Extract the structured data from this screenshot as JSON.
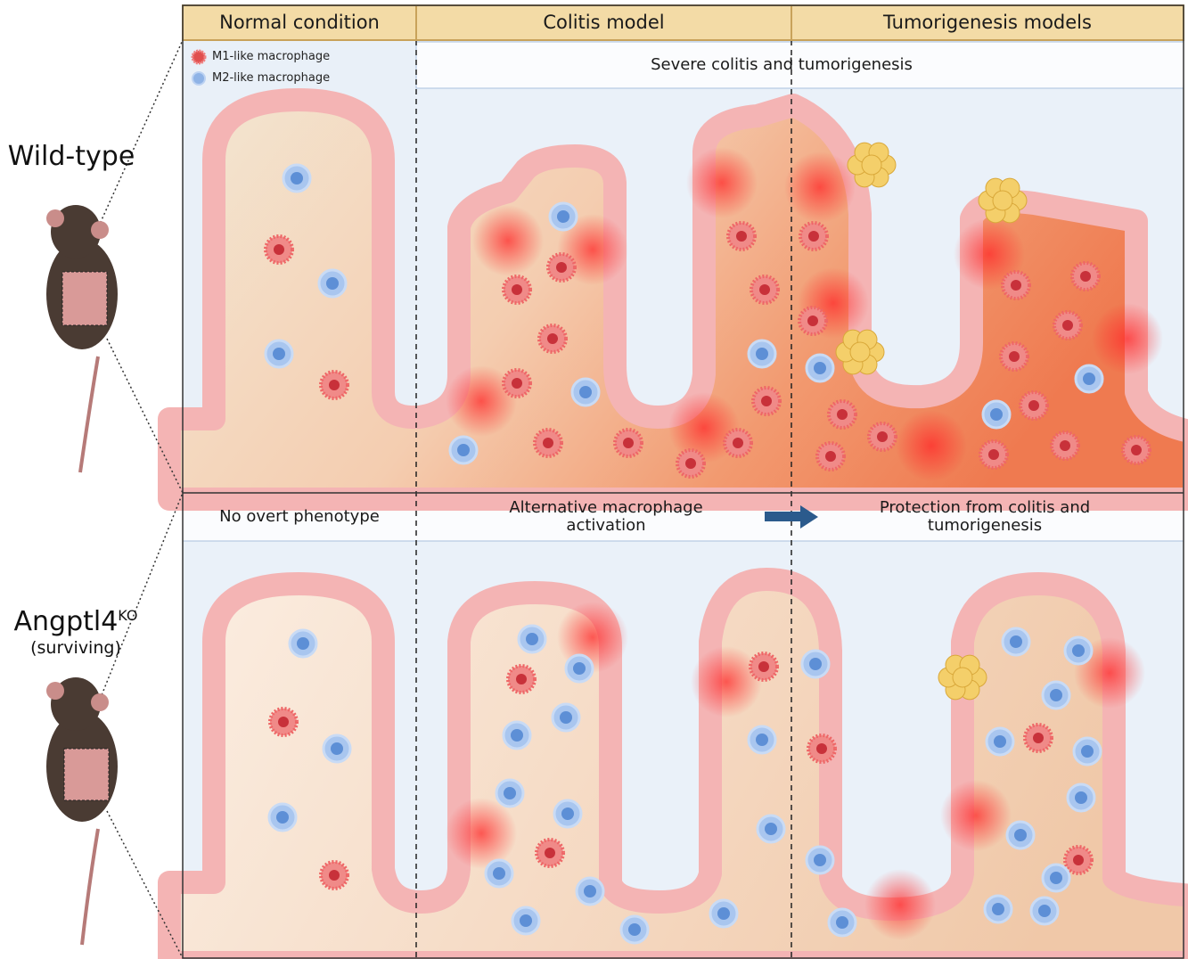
{
  "columns": [
    "Normal condition",
    "Colitis model",
    "Tumorigenesis models"
  ],
  "legend": {
    "m1": "M1-like macrophage",
    "m2": "M2-like macrophage"
  },
  "wildtype": {
    "label": "Wild-type",
    "banner": "Severe colitis and tumorigenesis"
  },
  "knockout": {
    "label": "Angptl4",
    "superscript": "KO",
    "sublabel": "(surviving)",
    "normal": "No overt phenotype",
    "colitis": "Alternative macrophage activation",
    "tumor": "Protection from colitis and tumorigenesis"
  },
  "colors": {
    "header": "#f3dba6",
    "header_border": "#c8a25a",
    "m1": "#e0504f",
    "m2": "#8fb3e6",
    "epithelium": "#f5b7b7",
    "arrow": "#2b5a8c"
  }
}
